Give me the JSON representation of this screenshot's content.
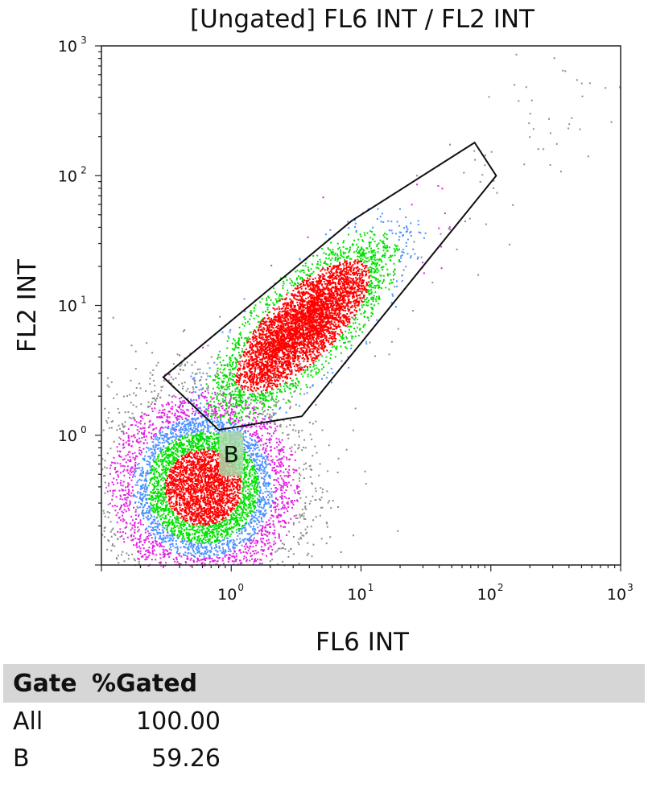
{
  "chart_data": {
    "type": "scatter",
    "title": "[Ungated] FL6 INT / FL2 INT",
    "xlabel": "FL6 INT",
    "ylabel": "FL2 INT",
    "x_scale": "log",
    "y_scale": "log",
    "xlim": [
      0.1,
      1000
    ],
    "ylim": [
      0.1,
      1000
    ],
    "x_ticks": [
      {
        "value": 1,
        "base": "10",
        "exp": "0"
      },
      {
        "value": 10,
        "base": "10",
        "exp": "1"
      },
      {
        "value": 100,
        "base": "10",
        "exp": "2"
      },
      {
        "value": 1000,
        "base": "10",
        "exp": "3"
      }
    ],
    "y_ticks": [
      {
        "value": 1,
        "base": "10",
        "exp": "0"
      },
      {
        "value": 10,
        "base": "10",
        "exp": "1"
      },
      {
        "value": 100,
        "base": "10",
        "exp": "2"
      },
      {
        "value": 1000,
        "base": "10",
        "exp": "3"
      }
    ],
    "density_colors": [
      "#8c8c8c",
      "#e020e0",
      "#4a90ff",
      "#00e000",
      "#ff0000"
    ],
    "populations": [
      {
        "center": [
          0.6,
          0.4
        ],
        "spread": 0.35,
        "count": 7000
      },
      {
        "center": [
          3.5,
          7.0
        ],
        "spread": 0.3,
        "correlated": true,
        "count": 16000
      }
    ],
    "gate": {
      "name": "B",
      "vertices": [
        [
          0.3,
          2.8
        ],
        [
          0.8,
          1.1
        ],
        [
          3.5,
          1.4
        ],
        [
          110,
          100
        ],
        [
          75,
          180
        ],
        [
          8.5,
          45
        ]
      ],
      "label_position": [
        1.0,
        0.72
      ],
      "label_bg": "#a8d8a8"
    },
    "grid": false
  },
  "stats_table": {
    "headers": {
      "gate": "Gate",
      "pct": "%Gated"
    },
    "rows": [
      {
        "gate": "All",
        "pct": "100.00"
      },
      {
        "gate": "B",
        "pct": "59.26"
      }
    ]
  }
}
